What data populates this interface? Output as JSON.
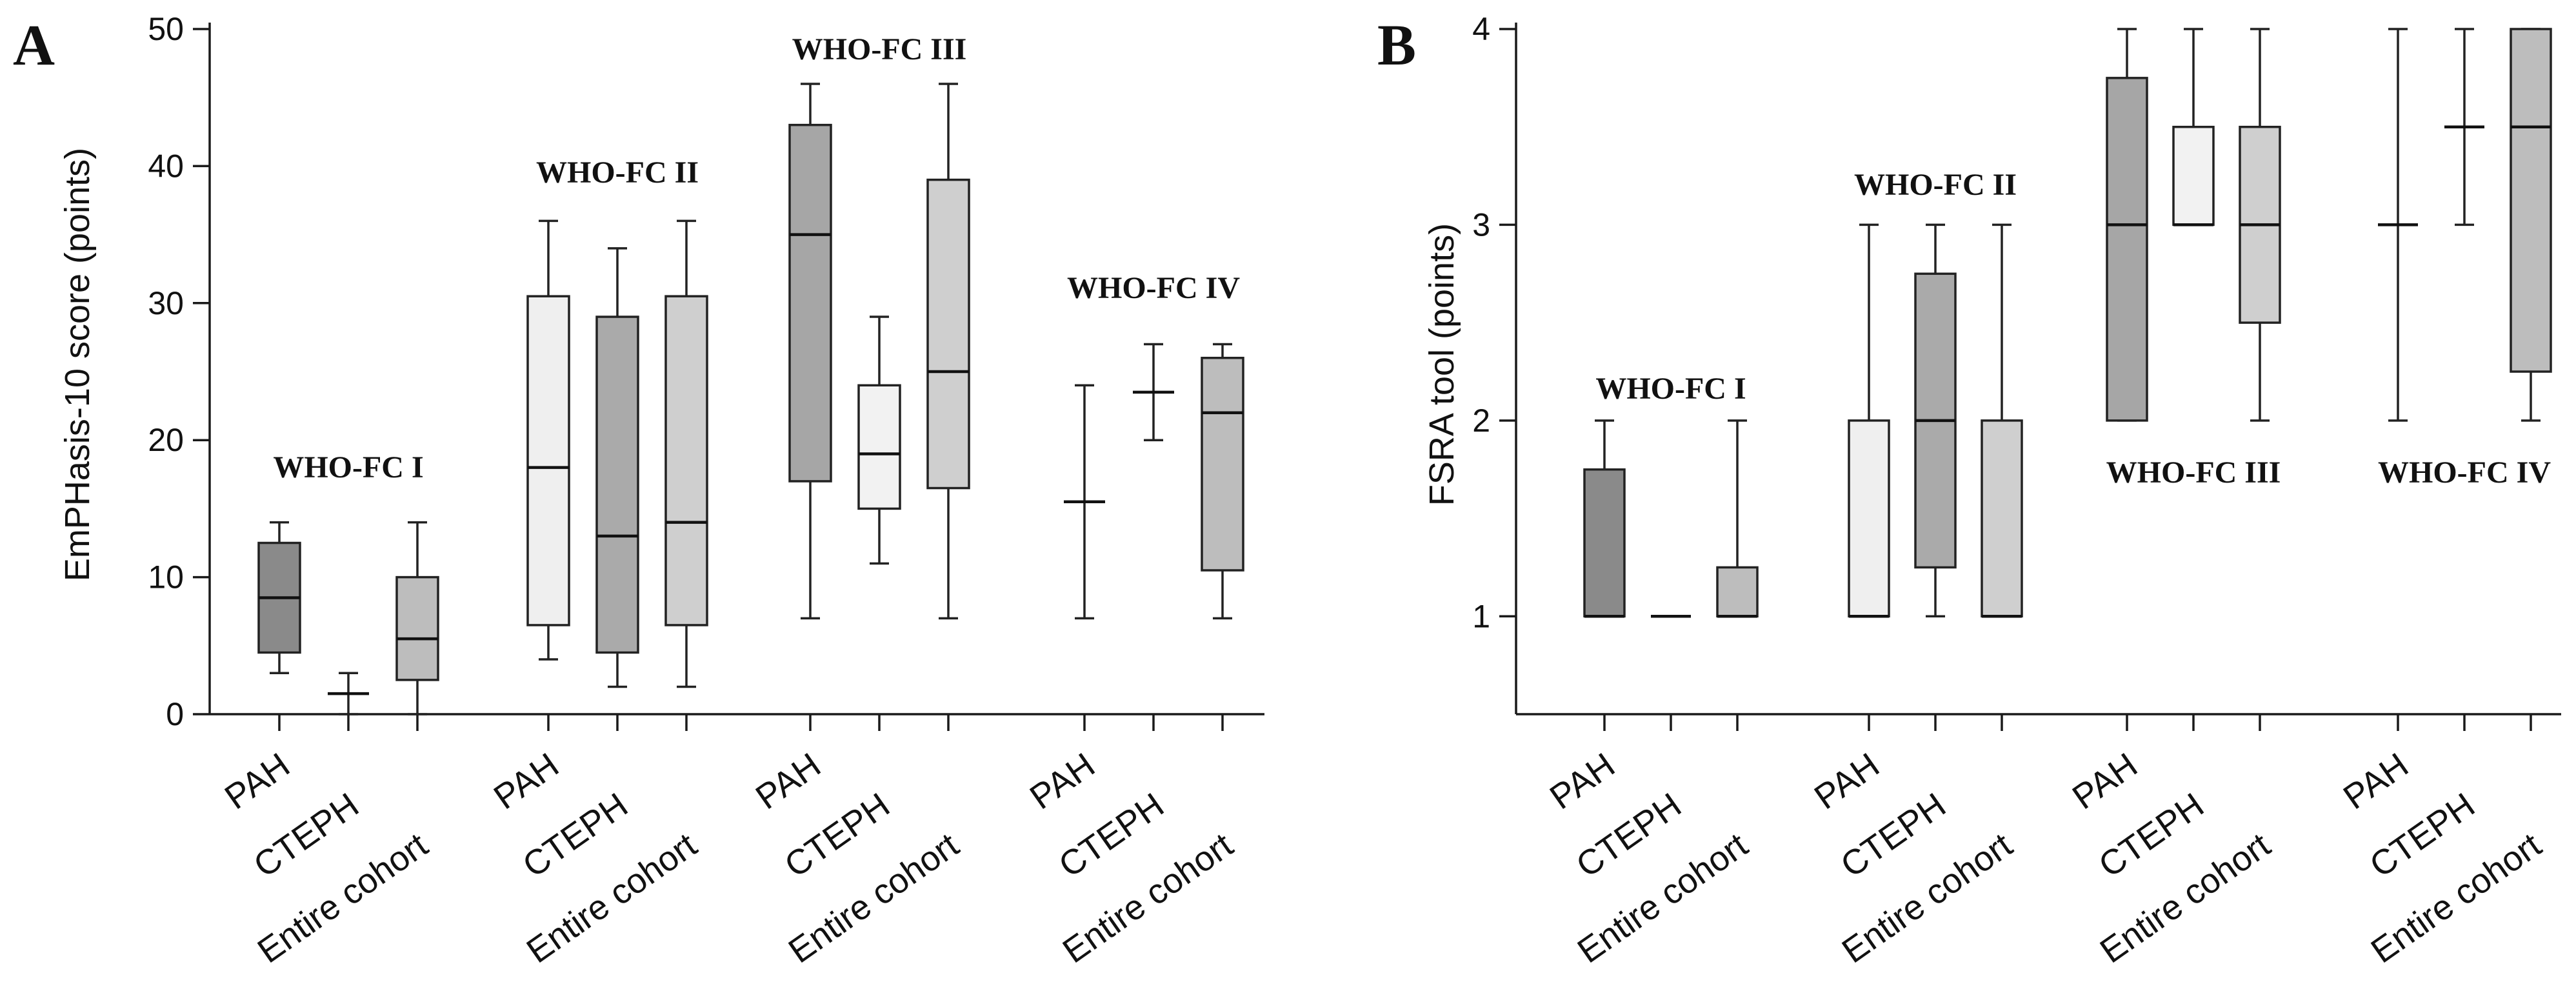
{
  "chart_data": [
    {
      "panel": "A",
      "type": "box",
      "ylabel": "EmPHasis-10 score (points)",
      "ylim": [
        0,
        50
      ],
      "yticks": [
        0,
        10,
        20,
        30,
        40,
        50
      ],
      "categories": [
        "PAH",
        "CTEPH",
        "Entire cohort"
      ],
      "group_label_position": "above",
      "groups": [
        {
          "label": "WHO-FC I",
          "boxes": [
            {
              "category": "PAH",
              "min": 3,
              "q1": 4.5,
              "median": 8.5,
              "q3": 12.5,
              "max": 14,
              "color": "#8a8a8a"
            },
            {
              "category": "CTEPH",
              "min": 0,
              "q1": 1.5,
              "median": 1.5,
              "q3": 1.5,
              "max": 3,
              "color": "#ffffff"
            },
            {
              "category": "Entire cohort",
              "min": 0,
              "q1": 2.5,
              "median": 5.5,
              "q3": 10,
              "max": 14,
              "color": "#bdbdbd"
            }
          ]
        },
        {
          "label": "WHO-FC II",
          "boxes": [
            {
              "category": "PAH",
              "min": 4,
              "q1": 6.5,
              "median": 18,
              "q3": 30.5,
              "max": 36,
              "color": "#efefef"
            },
            {
              "category": "CTEPH",
              "min": 2,
              "q1": 4.5,
              "median": 13,
              "q3": 29,
              "max": 34,
              "color": "#aaaaaa"
            },
            {
              "category": "Entire cohort",
              "min": 2,
              "q1": 6.5,
              "median": 14,
              "q3": 30.5,
              "max": 36,
              "color": "#cfcfcf"
            }
          ]
        },
        {
          "label": "WHO-FC III",
          "boxes": [
            {
              "category": "PAH",
              "min": 7,
              "q1": 17,
              "median": 35,
              "q3": 43,
              "max": 46,
              "color": "#a6a6a6"
            },
            {
              "category": "CTEPH",
              "min": 11,
              "q1": 15,
              "median": 19,
              "q3": 24,
              "max": 29,
              "color": "#f2f2f2"
            },
            {
              "category": "Entire cohort",
              "min": 7,
              "q1": 16.5,
              "median": 25,
              "q3": 39,
              "max": 46,
              "color": "#cfcfcf"
            }
          ]
        },
        {
          "label": "WHO-FC IV",
          "boxes": [
            {
              "category": "PAH",
              "min": 7,
              "q1": 15.5,
              "median": 15.5,
              "q3": 15.5,
              "max": 24,
              "color": "#ffffff"
            },
            {
              "category": "CTEPH",
              "min": 20,
              "q1": 23.5,
              "median": 23.5,
              "q3": 23.5,
              "max": 27,
              "color": "#ffffff"
            },
            {
              "category": "Entire cohort",
              "min": 7,
              "q1": 10.5,
              "median": 22,
              "q3": 26,
              "max": 27,
              "color": "#bdbdbd"
            }
          ]
        }
      ]
    },
    {
      "panel": "B",
      "type": "box",
      "ylabel": "FSRA tool (points)",
      "ylim": [
        0.5,
        4
      ],
      "yticks": [
        1,
        2,
        3,
        4
      ],
      "categories": [
        "PAH",
        "CTEPH",
        "Entire cohort"
      ],
      "groups": [
        {
          "label": "WHO-FC I",
          "label_position": "above",
          "boxes": [
            {
              "category": "PAH",
              "min": 1,
              "q1": 1,
              "median": 1,
              "q3": 1.75,
              "max": 2,
              "color": "#8a8a8a"
            },
            {
              "category": "CTEPH",
              "min": 1,
              "q1": 1,
              "median": 1,
              "q3": 1,
              "max": 1,
              "color": "#ffffff"
            },
            {
              "category": "Entire cohort",
              "min": 1,
              "q1": 1,
              "median": 1,
              "q3": 1.25,
              "max": 2,
              "color": "#bdbdbd"
            }
          ]
        },
        {
          "label": "WHO-FC II",
          "label_position": "above",
          "boxes": [
            {
              "category": "PAH",
              "min": 1,
              "q1": 1,
              "median": 1,
              "q3": 2,
              "max": 3,
              "color": "#efefef"
            },
            {
              "category": "CTEPH",
              "min": 1,
              "q1": 1.25,
              "median": 2,
              "q3": 2.75,
              "max": 3,
              "color": "#aaaaaa"
            },
            {
              "category": "Entire cohort",
              "min": 1,
              "q1": 1,
              "median": 1,
              "q3": 2,
              "max": 3,
              "color": "#cfcfcf"
            }
          ]
        },
        {
          "label": "WHO-FC III",
          "label_position": "below",
          "boxes": [
            {
              "category": "PAH",
              "min": 2,
              "q1": 2,
              "median": 3,
              "q3": 3.75,
              "max": 4,
              "color": "#a6a6a6"
            },
            {
              "category": "CTEPH",
              "min": 3,
              "q1": 3,
              "median": 3,
              "q3": 3.5,
              "max": 4,
              "color": "#f2f2f2"
            },
            {
              "category": "Entire cohort",
              "min": 2,
              "q1": 2.5,
              "median": 3,
              "q3": 3.5,
              "max": 4,
              "color": "#cfcfcf"
            }
          ]
        },
        {
          "label": "WHO-FC IV",
          "label_position": "below",
          "boxes": [
            {
              "category": "PAH",
              "min": 2,
              "q1": 3,
              "median": 3,
              "q3": 3,
              "max": 4,
              "color": "#ffffff"
            },
            {
              "category": "CTEPH",
              "min": 3,
              "q1": 3.5,
              "median": 3.5,
              "q3": 3.5,
              "max": 4,
              "color": "#ffffff"
            },
            {
              "category": "Entire cohort",
              "min": 2,
              "q1": 2.25,
              "median": 3.5,
              "q3": 4,
              "max": 4,
              "color": "#bdbdbd"
            }
          ]
        }
      ]
    }
  ]
}
